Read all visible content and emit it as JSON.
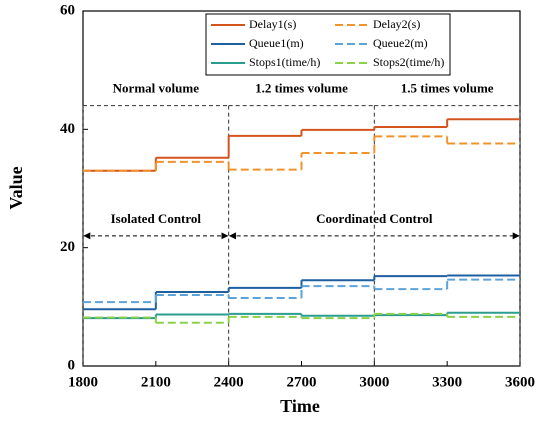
{
  "chart_data": {
    "type": "step",
    "xlabel": "Time",
    "ylabel": "Value",
    "x": [
      1800,
      2100,
      2400,
      2700,
      3000,
      3300
    ],
    "xlim": [
      1800,
      3600
    ],
    "xticks": [
      1800,
      2100,
      2400,
      2700,
      3000,
      3300,
      3600
    ],
    "ylim": [
      0,
      60
    ],
    "yticks": [
      0,
      20,
      40,
      60
    ],
    "legend": "top",
    "series": [
      {
        "name": "Delay1(s)",
        "color": "#d4541e",
        "style": "solid",
        "values": [
          33,
          35.2,
          38.9,
          39.9,
          40.4,
          41.7
        ]
      },
      {
        "name": "Delay2(s)",
        "color": "#f0932b",
        "style": "dashed",
        "values": [
          33,
          34.5,
          33.2,
          36,
          38.8,
          37.6
        ]
      },
      {
        "name": "Queue1(m)",
        "color": "#1f5fa0",
        "style": "solid",
        "values": [
          9.6,
          12.5,
          13.2,
          14.5,
          15.2,
          15.3
        ]
      },
      {
        "name": "Queue2(m)",
        "color": "#5ba3d9",
        "style": "dashed",
        "values": [
          10.8,
          12,
          11.5,
          13.5,
          13,
          14.6
        ]
      },
      {
        "name": "Stops1(time/h)",
        "color": "#2a9d8f",
        "style": "solid",
        "values": [
          8.1,
          8.7,
          8.8,
          8.5,
          8.6,
          9
        ]
      },
      {
        "name": "Stops2(time/h)",
        "color": "#8bd14a",
        "style": "dashed",
        "values": [
          8.2,
          7.3,
          8.3,
          8.1,
          8.8,
          8.3
        ]
      }
    ],
    "regions": {
      "y": 44,
      "items": [
        {
          "text": "Normal volume",
          "x0": 1800,
          "x1": 2400
        },
        {
          "text": "1.2 times volume",
          "x0": 2400,
          "x1": 3000
        },
        {
          "text": "1.5 times volume",
          "x0": 3000,
          "x1": 3600
        }
      ]
    },
    "controls": {
      "y": 22,
      "items": [
        {
          "text": "Isolated Control",
          "x0": 1800,
          "x1": 2400
        },
        {
          "text": "Coordinated Control",
          "x0": 2400,
          "x1": 3600
        }
      ]
    }
  }
}
